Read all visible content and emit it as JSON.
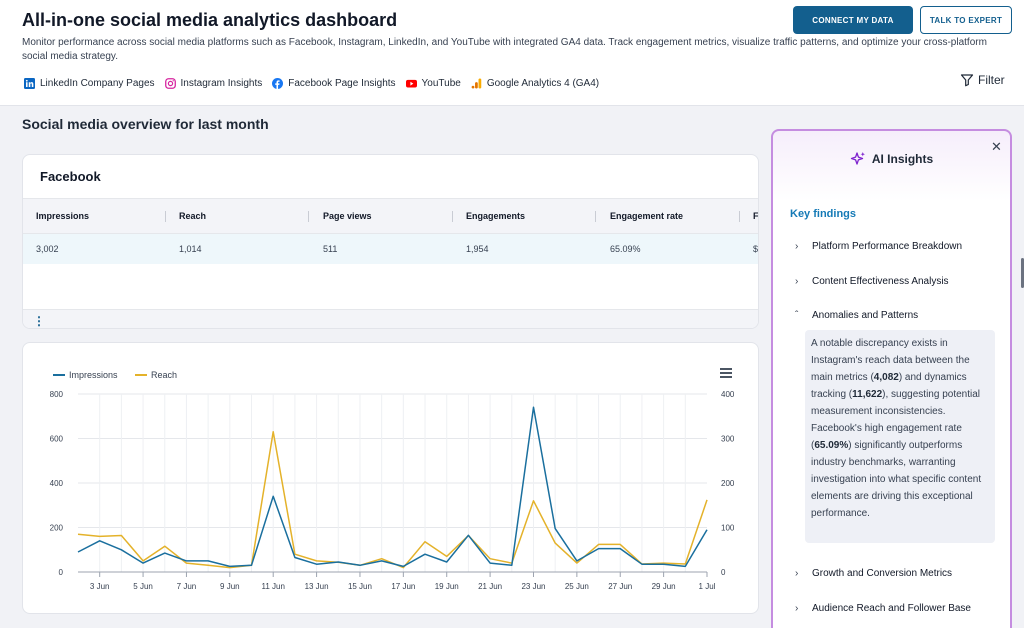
{
  "header": {
    "title": "All-in-one social media analytics dashboard",
    "subtitle": "Monitor performance across social media platforms such as Facebook, Instagram, LinkedIn, and YouTube with integrated GA4 data. Track engagement metrics, visualize traffic patterns, and optimize your cross-platform social media strategy.",
    "connect_label": "CONNECT MY DATA",
    "talk_label": "TALK TO EXPERT",
    "filter_label": "Filter",
    "sources": [
      {
        "label": "LinkedIn Company Pages",
        "icon": "linkedin-icon",
        "color": "#0a66c2"
      },
      {
        "label": "Instagram Insights",
        "icon": "instagram-icon",
        "color": "#d6249f"
      },
      {
        "label": "Facebook Page Insights",
        "icon": "facebook-icon",
        "color": "#1877f2"
      },
      {
        "label": "YouTube",
        "icon": "youtube-icon",
        "color": "#ff0000"
      },
      {
        "label": "Google Analytics 4 (GA4)",
        "icon": "ga4-icon",
        "color": "#f9ab00"
      }
    ]
  },
  "section": {
    "title": "Social media overview for last month"
  },
  "facebook": {
    "title": "Facebook",
    "columns": [
      "Impressions",
      "Reach",
      "Page views",
      "Engagements",
      "Engagement rate",
      "Fo"
    ],
    "row": [
      "3,002",
      "1,014",
      "511",
      "1,954",
      "65.09%",
      "$"
    ]
  },
  "chart_data": {
    "type": "line",
    "x": [
      "2 Jun",
      "3 Jun",
      "4 Jun",
      "5 Jun",
      "6 Jun",
      "7 Jun",
      "8 Jun",
      "9 Jun",
      "10 Jun",
      "11 Jun",
      "12 Jun",
      "13 Jun",
      "14 Jun",
      "15 Jun",
      "16 Jun",
      "17 Jun",
      "18 Jun",
      "19 Jun",
      "20 Jun",
      "21 Jun",
      "22 Jun",
      "23 Jun",
      "24 Jun",
      "25 Jun",
      "26 Jun",
      "27 Jun",
      "28 Jun",
      "29 Jun",
      "30 Jun",
      "1 Jul"
    ],
    "tick_labels": [
      "3 Jun",
      "5 Jun",
      "7 Jun",
      "9 Jun",
      "11 Jun",
      "13 Jun",
      "15 Jun",
      "17 Jun",
      "19 Jun",
      "21 Jun",
      "23 Jun",
      "25 Jun",
      "27 Jun",
      "29 Jun",
      "1 Jul"
    ],
    "series": [
      {
        "name": "Impressions",
        "axis": "left",
        "color": "#1a6f9e",
        "values": [
          90,
          140,
          100,
          40,
          85,
          50,
          50,
          25,
          30,
          340,
          65,
          35,
          45,
          30,
          50,
          25,
          80,
          45,
          165,
          40,
          30,
          740,
          195,
          50,
          105,
          105,
          35,
          35,
          25,
          190
        ]
      },
      {
        "name": "Reach",
        "axis": "right",
        "color": "#e4b22a",
        "values": [
          85,
          80,
          82,
          25,
          58,
          20,
          15,
          10,
          15,
          315,
          40,
          25,
          22,
          15,
          30,
          10,
          68,
          35,
          82,
          30,
          20,
          160,
          65,
          20,
          62,
          62,
          18,
          20,
          18,
          162
        ]
      }
    ],
    "y_left": {
      "min": 0,
      "max": 800,
      "ticks": [
        0,
        200,
        400,
        600,
        800
      ]
    },
    "y_right": {
      "min": 0,
      "max": 400,
      "ticks": [
        0,
        100,
        200,
        300,
        400
      ]
    },
    "legend": "top-left",
    "grid": true
  },
  "ai": {
    "title": "AI Insights",
    "key_findings": "Key findings",
    "findings": [
      {
        "label": "Platform Performance Breakdown",
        "expanded": false
      },
      {
        "label": "Content Effectiveness Analysis",
        "expanded": false
      },
      {
        "label": "Anomalies and Patterns",
        "expanded": true
      },
      {
        "label": "Growth and Conversion Metrics",
        "expanded": false
      },
      {
        "label": "Audience Reach and Follower Base",
        "expanded": false
      }
    ],
    "body": {
      "t1": "A notable discrepancy exists in Instagram's reach data between the main metrics (",
      "b1": "4,082",
      "t2": ") and dynamics tracking (",
      "b2": "11,622",
      "t3": "), suggesting potential measurement inconsistencies. Facebook's high engagement rate (",
      "b3": "65.09%",
      "t4": ") significantly outperforms industry benchmarks, warranting investigation into what specific content elements are driving this exceptional performance."
    }
  }
}
